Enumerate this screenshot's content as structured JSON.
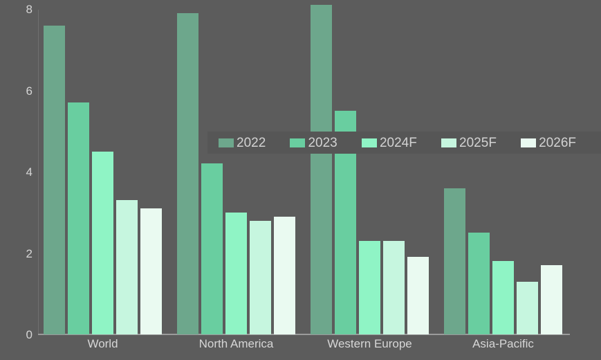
{
  "chart_data": {
    "type": "bar",
    "title": "",
    "xlabel": "",
    "ylabel": "",
    "categories": [
      "World",
      "North America",
      "Western Europe",
      "Asia-Pacific"
    ],
    "series": [
      {
        "name": "2022",
        "color": "#6DA78C",
        "values": [
          7.6,
          7.9,
          8.1,
          3.6
        ]
      },
      {
        "name": "2023",
        "color": "#69CEA0",
        "values": [
          5.7,
          4.2,
          5.5,
          2.5
        ]
      },
      {
        "name": "2024F",
        "color": "#8FF4C5",
        "values": [
          4.5,
          3.0,
          2.3,
          1.8
        ]
      },
      {
        "name": "2025F",
        "color": "#C6F6DF",
        "values": [
          3.3,
          2.8,
          2.3,
          1.3
        ]
      },
      {
        "name": "2026F",
        "color": "#EAFAF1",
        "values": [
          3.1,
          2.9,
          1.9,
          1.7
        ]
      }
    ],
    "ylim": [
      0,
      8
    ],
    "yticks": [
      "0",
      "2",
      "4",
      "6",
      "8"
    ],
    "grid": false,
    "legend_position": "overlay-middle-right"
  },
  "colors": {
    "background": "#5C5C5C",
    "legend_background": "#565656",
    "axis_text": "#D6D6D6",
    "y_axis_line": "#6F6F6F",
    "x_axis_line": "#9B9B9B"
  }
}
